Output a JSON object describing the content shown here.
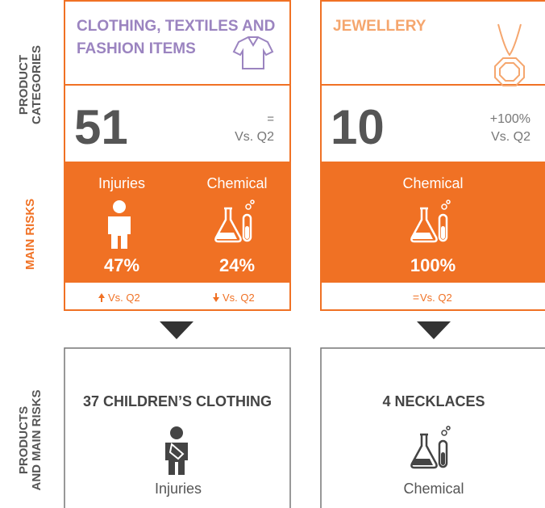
{
  "side_labels": {
    "categories": [
      "PRODUCT",
      "CATEGORIES"
    ],
    "risks": [
      "MAIN RISKS"
    ],
    "products": [
      "PRODUCTS",
      "AND MAIN RISKS"
    ]
  },
  "cards": [
    {
      "title": [
        "CLOTHING, TEXTILES AND",
        "FASHION ITEMS"
      ],
      "count": "51",
      "change": "=",
      "comparison": "Vs. Q2",
      "risks": [
        {
          "name": "Injuries",
          "share": "47%",
          "trend": "Vs. Q2"
        },
        {
          "name": "Chemical",
          "share": "24%",
          "trend": "Vs. Q2"
        }
      ],
      "product": {
        "title": "37 CHILDREN’S CLOTHING",
        "risk": "Injuries"
      }
    },
    {
      "title": [
        "JEWELLERY"
      ],
      "count": "10",
      "change": "+100%",
      "comparison": "Vs. Q2",
      "risks": [
        {
          "name": "Chemical",
          "share": "100%",
          "trend_sign": "=",
          "trend": "Vs. Q2"
        }
      ],
      "product": {
        "title": "4 NECKLACES",
        "risk": "Chemical"
      }
    }
  ]
}
